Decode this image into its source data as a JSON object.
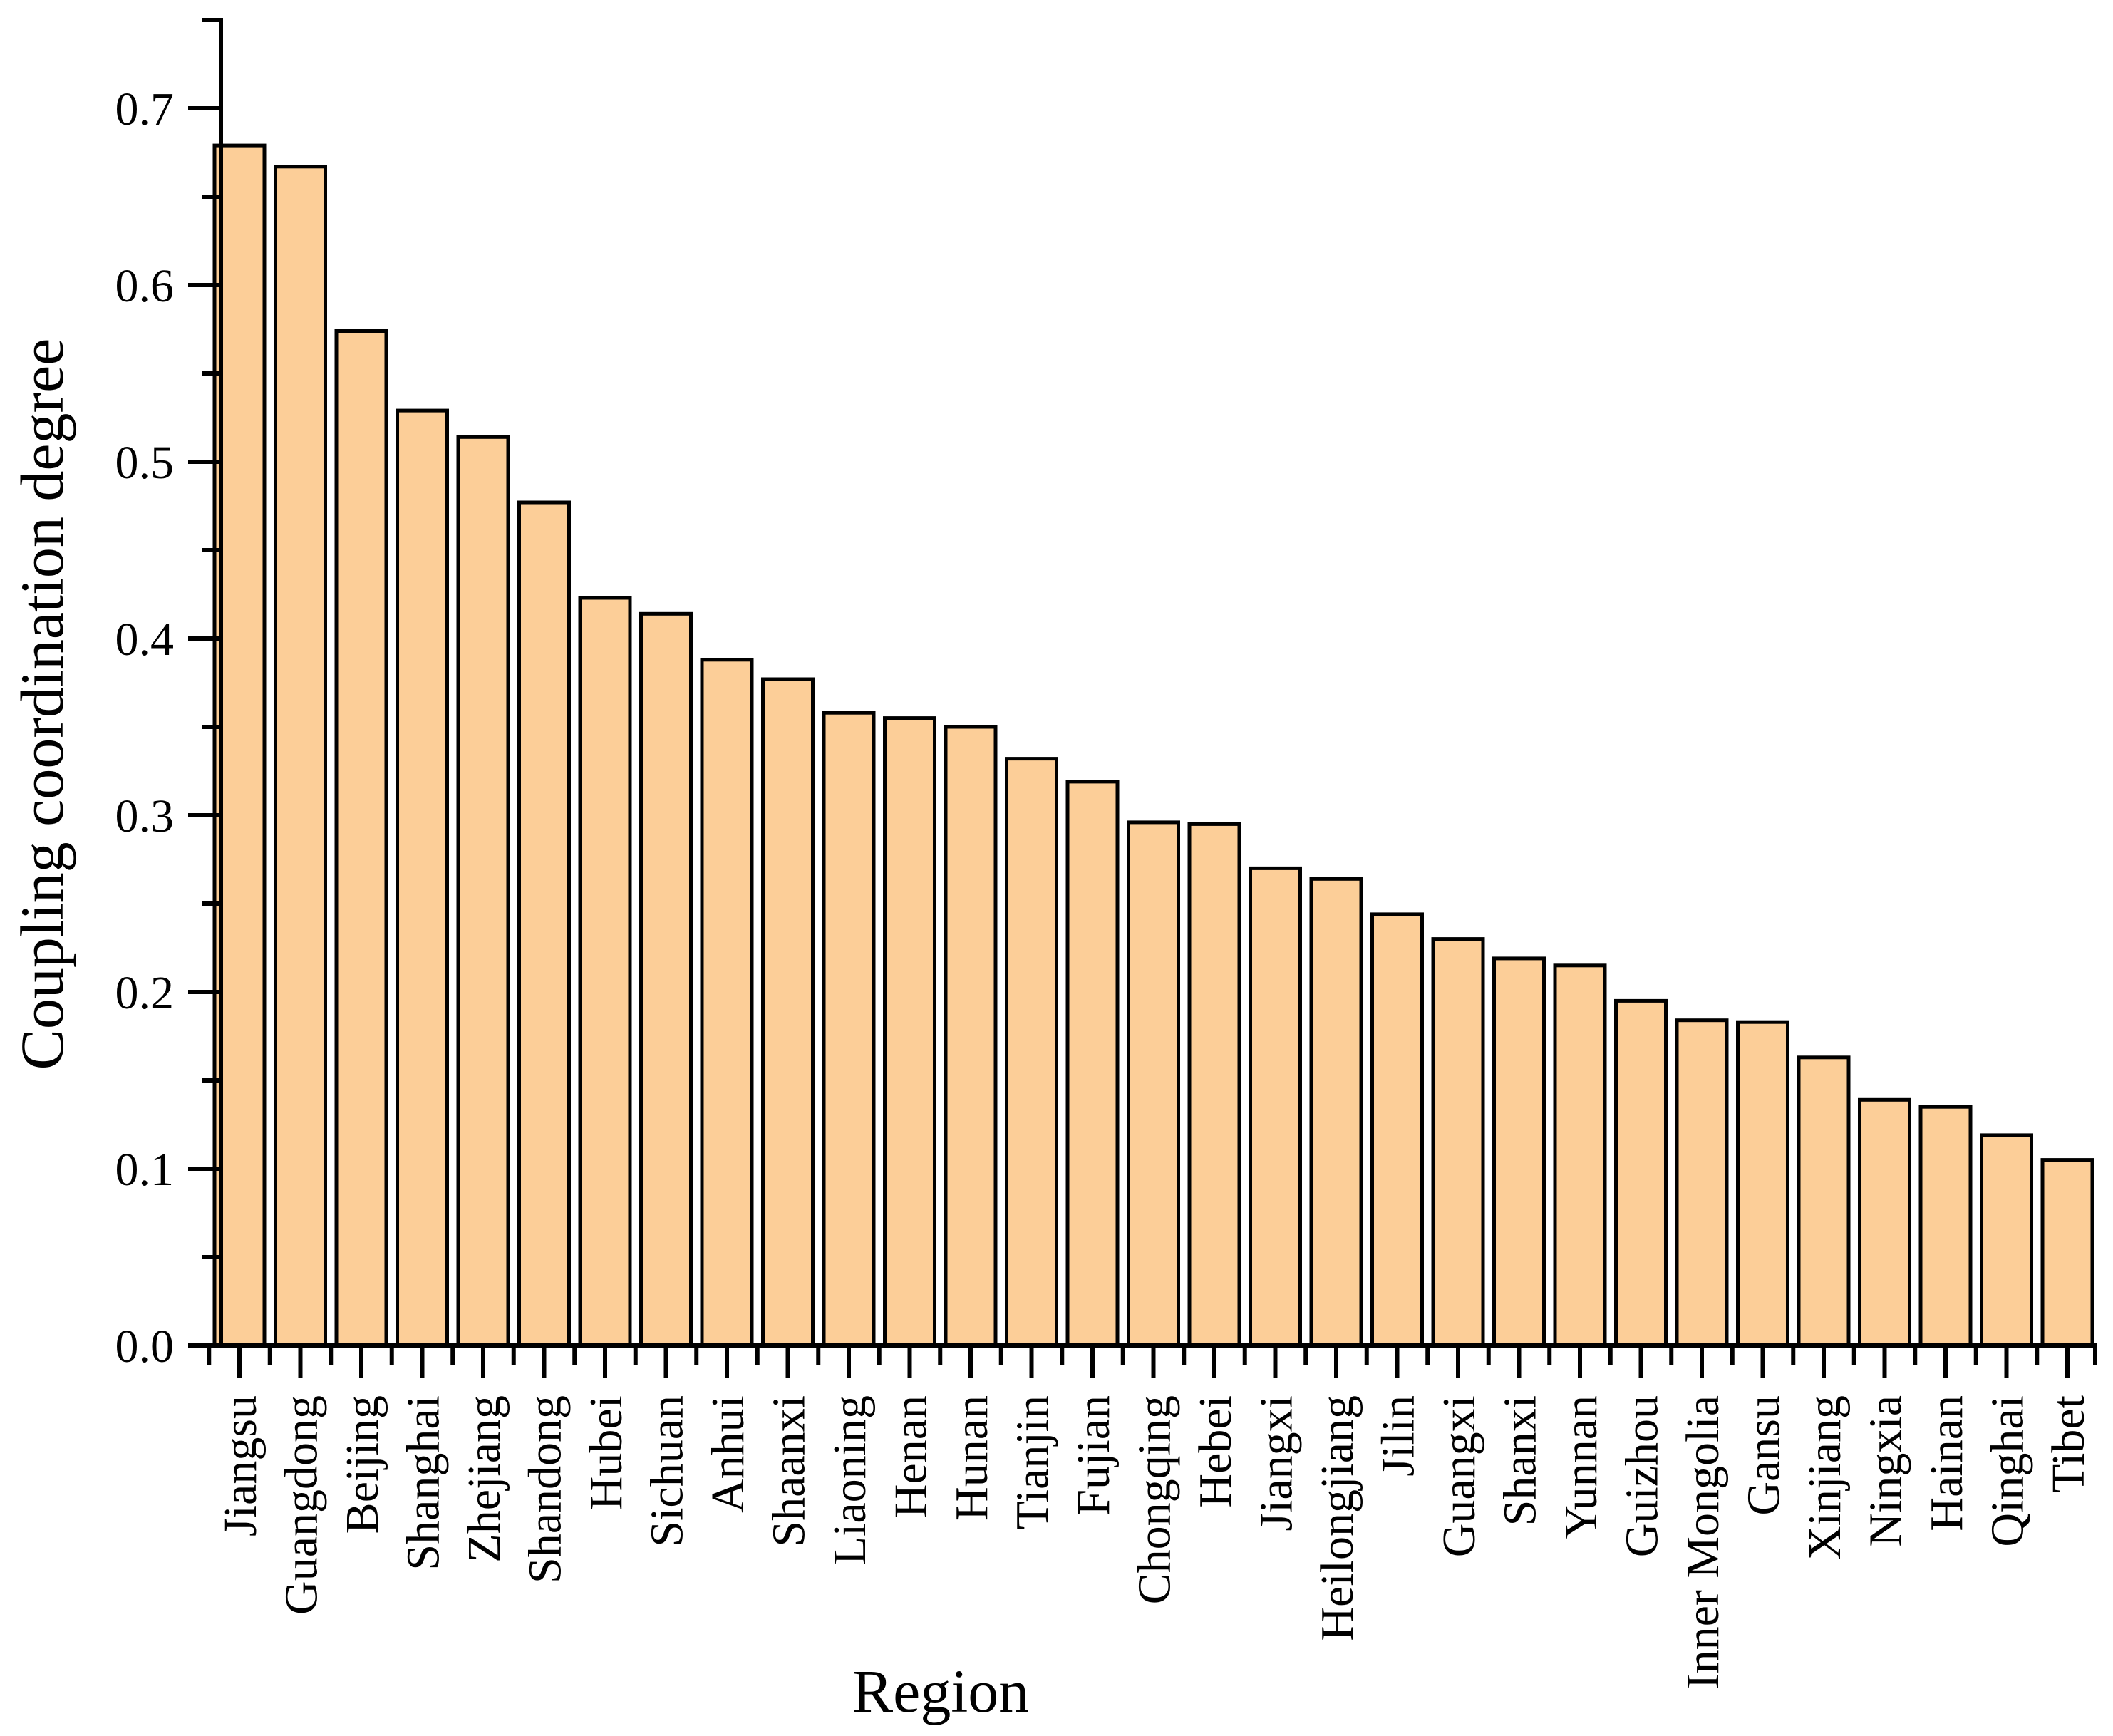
{
  "chart_data": {
    "type": "bar",
    "title": "",
    "xlabel": "Region",
    "ylabel": "Coupling coordination degree",
    "categories": [
      "Jiangsu",
      "Guangdong",
      "Beijing",
      "Shanghai",
      "Zhejiang",
      "Shandong",
      "Hubei",
      "Sichuan",
      "Anhui",
      "Shaanxi",
      "Liaoning",
      "Henan",
      "Hunan",
      "Tianjin",
      "Fujian",
      "Chongqing",
      "Hebei",
      "Jiangxi",
      "Heilongjiang",
      "Jilin",
      "Guangxi",
      "Shanxi",
      "Yunnan",
      "Guizhou",
      "Inner Mongolia",
      "Gansu",
      "Xinjiang",
      "Ningxia",
      "Hainan",
      "Qinghai",
      "Tibet"
    ],
    "values": [
      0.679,
      0.667,
      0.574,
      0.529,
      0.514,
      0.477,
      0.423,
      0.414,
      0.388,
      0.377,
      0.358,
      0.355,
      0.35,
      0.332,
      0.319,
      0.296,
      0.295,
      0.27,
      0.264,
      0.244,
      0.23,
      0.219,
      0.215,
      0.195,
      0.184,
      0.183,
      0.163,
      0.139,
      0.135,
      0.119,
      0.105
    ],
    "ylim": [
      0,
      0.75
    ],
    "yticks": [
      0.0,
      0.1,
      0.2,
      0.3,
      0.4,
      0.5,
      0.6,
      0.7
    ],
    "ytick_labels": [
      "0.0",
      "0.1",
      "0.2",
      "0.3",
      "0.4",
      "0.5",
      "0.6",
      "0.7"
    ],
    "minor_tick_step": 0.05,
    "grid": "off",
    "legend": "none",
    "bar_fill": "#FCCE98",
    "bar_edge": "#000000",
    "axis_color": "#000000",
    "background": "#FFFFFF"
  }
}
